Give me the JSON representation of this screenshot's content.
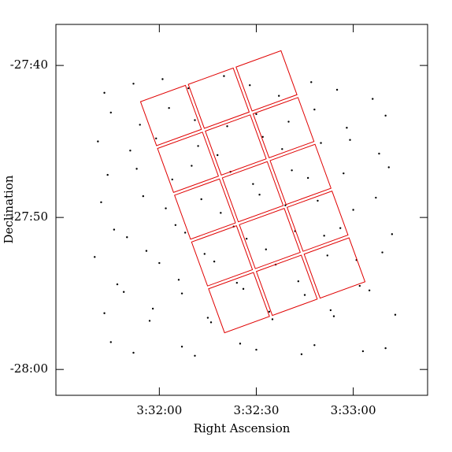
{
  "chart_data": {
    "type": "scatter",
    "x_label": "Right Ascension",
    "y_label": "Declination",
    "color": "#000000",
    "xlim": [
      12688,
      12803
    ],
    "ylim": [
      -1681.7,
      -1657.3
    ],
    "xticks": [
      {
        "value": 12720,
        "label": "3:32:00"
      },
      {
        "value": 12750,
        "label": "3:32:30"
      },
      {
        "value": 12780,
        "label": "3:33:00"
      }
    ],
    "yticks": [
      {
        "value": -1660,
        "label": "-27:40"
      },
      {
        "value": -1670,
        "label": "-27:50"
      },
      {
        "value": -1680,
        "label": "-28:00"
      }
    ],
    "x": [
      12703,
      12712,
      12721,
      12729,
      12740,
      12748,
      12757,
      12767,
      12775,
      12786,
      12705,
      12714,
      12723,
      12731,
      12741,
      12750,
      12760,
      12768,
      12778,
      12790,
      12701,
      12711,
      12719,
      12732,
      12738,
      12752,
      12758,
      12770,
      12779,
      12788,
      12704,
      12713,
      12724,
      12730,
      12742,
      12749,
      12761,
      12766,
      12777,
      12791,
      12702,
      12715,
      12722,
      12733,
      12739,
      12751,
      12759,
      12769,
      12780,
      12787,
      12706,
      12710,
      12725,
      12728,
      12743,
      12747,
      12762,
      12771,
      12776,
      12792,
      12700,
      12716,
      12720,
      12734,
      12737,
      12753,
      12756,
      12772,
      12781,
      12789,
      12707,
      12709,
      12726,
      12727,
      12744,
      12746,
      12763,
      12765,
      12782,
      12785,
      12703,
      12717,
      12718,
      12735,
      12736,
      12754,
      12755,
      12773,
      12774,
      12793,
      12705,
      12712,
      12727,
      12731,
      12745,
      12750,
      12764,
      12768,
      12783,
      12790
    ],
    "y": [
      -1661.8,
      -1661.2,
      -1660.9,
      -1661.5,
      -1660.7,
      -1661.3,
      -1662.0,
      -1661.1,
      -1661.6,
      -1662.2,
      -1663.1,
      -1663.9,
      -1662.8,
      -1663.6,
      -1664.0,
      -1663.2,
      -1663.7,
      -1662.9,
      -1664.1,
      -1663.3,
      -1665.0,
      -1665.6,
      -1664.8,
      -1665.3,
      -1665.9,
      -1664.7,
      -1665.5,
      -1665.1,
      -1664.9,
      -1665.8,
      -1667.2,
      -1666.8,
      -1667.5,
      -1666.6,
      -1667.0,
      -1667.8,
      -1666.9,
      -1667.4,
      -1667.1,
      -1666.7,
      -1669.0,
      -1668.6,
      -1669.4,
      -1668.8,
      -1669.7,
      -1668.5,
      -1669.2,
      -1668.9,
      -1669.5,
      -1668.7,
      -1670.8,
      -1671.3,
      -1670.5,
      -1671.0,
      -1670.6,
      -1671.4,
      -1670.9,
      -1671.2,
      -1670.7,
      -1671.1,
      -1672.6,
      -1672.2,
      -1673.0,
      -1672.4,
      -1672.9,
      -1672.1,
      -1673.1,
      -1672.5,
      -1672.8,
      -1672.3,
      -1674.4,
      -1674.9,
      -1674.1,
      -1675.0,
      -1674.3,
      -1674.7,
      -1674.2,
      -1675.1,
      -1674.5,
      -1674.8,
      -1676.3,
      -1676.8,
      -1676.0,
      -1676.6,
      -1676.9,
      -1676.2,
      -1676.7,
      -1676.1,
      -1676.5,
      -1676.4,
      -1678.2,
      -1678.9,
      -1678.5,
      -1679.1,
      -1678.3,
      -1678.7,
      -1679.0,
      -1678.4,
      -1678.8,
      -1678.6
    ]
  }
}
